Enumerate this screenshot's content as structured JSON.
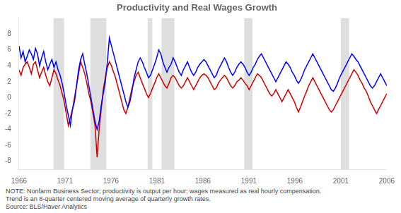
{
  "chart_data": {
    "type": "line",
    "title": "Productivity and Real Wages Growth",
    "note": "NOTE: Nonfarm Business Sector; productivity is output per hour; wages measured as real hourly compensation.\nTrend is an 8-quarter centered moving average of quarterly growth rates.\nSource: BLS/Haver Analytics",
    "xlim": [
      1966,
      2006
    ],
    "xticks": [
      1966,
      1971,
      1976,
      1981,
      1986,
      1991,
      1996,
      2001,
      2006
    ],
    "ylim": [
      -9,
      10
    ],
    "yticks": [
      8,
      6,
      4,
      2,
      0,
      -2,
      -4,
      -6,
      -8
    ],
    "grid": false,
    "recession_bands": [
      [
        1969.75,
        1970.9
      ],
      [
        1973.75,
        1975.5
      ],
      [
        1980.0,
        1980.5
      ],
      [
        1981.5,
        1982.9
      ],
      [
        1990.5,
        1991.4
      ],
      [
        2001.0,
        2001.9
      ]
    ],
    "x": [
      1966.0,
      1966.223,
      1966.447,
      1966.67,
      1966.894,
      1967.117,
      1967.341,
      1967.564,
      1967.788,
      1968.011,
      1968.235,
      1968.458,
      1968.682,
      1968.905,
      1969.128,
      1969.352,
      1969.575,
      1969.799,
      1970.022,
      1970.246,
      1970.469,
      1970.693,
      1970.916,
      1971.14,
      1971.363,
      1971.587,
      1971.81,
      1972.034,
      1972.257,
      1972.48,
      1972.704,
      1972.927,
      1973.151,
      1973.374,
      1973.598,
      1973.821,
      1974.045,
      1974.268,
      1974.492,
      1974.715,
      1974.939,
      1975.162,
      1975.385,
      1975.609,
      1975.832,
      1976.056,
      1976.279,
      1976.503,
      1976.726,
      1976.95,
      1977.173,
      1977.397,
      1977.62,
      1977.844,
      1978.067,
      1978.291,
      1978.514,
      1978.737,
      1978.961,
      1979.184,
      1979.408,
      1979.631,
      1979.855,
      1980.078,
      1980.302,
      1980.525,
      1980.749,
      1980.972,
      1981.196,
      1981.419,
      1981.642,
      1981.866,
      1982.089,
      1982.313,
      1982.536,
      1982.76,
      1982.983,
      1983.207,
      1983.43,
      1983.654,
      1983.877,
      1984.101,
      1984.324,
      1984.547,
      1984.771,
      1984.994,
      1985.218,
      1985.441,
      1985.665,
      1985.888,
      1986.112,
      1986.335,
      1986.559,
      1986.782,
      1987.006,
      1987.229,
      1987.453,
      1987.676,
      1987.899,
      1988.123,
      1988.346,
      1988.57,
      1988.793,
      1989.017,
      1989.24,
      1989.464,
      1989.687,
      1989.911,
      1990.134,
      1990.358,
      1990.581,
      1990.804,
      1991.028,
      1991.251,
      1991.475,
      1991.698,
      1991.922,
      1992.145,
      1992.369,
      1992.592,
      1992.816,
      1993.039,
      1993.263,
      1993.486,
      1993.709,
      1993.933,
      1994.156,
      1994.38,
      1994.603,
      1994.827,
      1995.05,
      1995.274,
      1995.497,
      1995.721,
      1995.944,
      1996.168,
      1996.391,
      1996.615,
      1996.838,
      1997.061,
      1997.285,
      1997.508,
      1997.732,
      1997.955,
      1998.179,
      1998.402,
      1998.626,
      1998.849,
      1999.073,
      1999.296,
      1999.52,
      1999.743,
      1999.966,
      2000.19,
      2000.413,
      2000.637,
      2000.86,
      2001.084,
      2001.307,
      2001.531,
      2001.754,
      2001.978,
      2002.201,
      2002.425,
      2002.648,
      2002.872,
      2003.095,
      2003.318,
      2003.542,
      2003.765,
      2003.989,
      2004.212,
      2004.436,
      2004.659,
      2004.883,
      2005.106,
      2005.33,
      2005.553,
      2005.777,
      2006.0
    ],
    "series": [
      {
        "color": "#0000ff",
        "values": [
          6.5,
          5.0,
          5.8,
          4.5,
          5.2,
          6.0,
          5.5,
          4.8,
          6.2,
          5.5,
          4.0,
          5.0,
          5.8,
          4.5,
          3.5,
          4.2,
          4.8,
          3.8,
          4.5,
          3.5,
          2.8,
          1.8,
          0.5,
          -1.0,
          -2.2,
          -3.5,
          -1.5,
          -0.5,
          1.5,
          3.5,
          4.8,
          5.5,
          4.2,
          3.0,
          1.5,
          0.0,
          -1.5,
          -3.0,
          -4.0,
          -3.0,
          -1.0,
          0.5,
          2.0,
          4.5,
          7.5,
          6.5,
          5.5,
          4.5,
          3.5,
          2.5,
          1.5,
          0.5,
          -0.5,
          -1.2,
          -0.5,
          0.8,
          2.5,
          3.5,
          4.5,
          5.0,
          4.5,
          3.8,
          3.2,
          2.5,
          2.8,
          3.5,
          4.2,
          5.0,
          6.0,
          5.5,
          4.5,
          3.8,
          3.2,
          3.8,
          4.2,
          5.0,
          4.5,
          3.8,
          3.2,
          2.8,
          3.5,
          4.0,
          4.5,
          3.8,
          3.2,
          2.8,
          3.2,
          3.8,
          4.2,
          4.5,
          4.8,
          4.5,
          4.0,
          3.5,
          3.0,
          2.5,
          2.8,
          3.5,
          4.0,
          4.5,
          5.0,
          4.5,
          3.8,
          3.2,
          2.8,
          3.2,
          3.8,
          4.2,
          4.5,
          4.2,
          3.8,
          3.2,
          2.8,
          3.2,
          3.8,
          4.2,
          4.8,
          5.2,
          5.5,
          5.0,
          4.5,
          4.0,
          3.5,
          3.0,
          2.5,
          2.0,
          2.5,
          3.0,
          3.5,
          4.0,
          4.5,
          4.2,
          3.8,
          3.2,
          2.8,
          2.2,
          1.8,
          2.2,
          2.8,
          3.5,
          4.0,
          4.5,
          5.0,
          5.5,
          5.0,
          4.5,
          4.0,
          3.5,
          3.0,
          2.5,
          2.0,
          1.5,
          1.0,
          0.8,
          1.2,
          1.8,
          2.5,
          3.0,
          3.5,
          4.0,
          4.5,
          5.0,
          5.5,
          5.2,
          4.8,
          4.5,
          4.0,
          3.5,
          3.0,
          2.5,
          2.0,
          1.5,
          1.2,
          1.5,
          2.0,
          2.5,
          3.0,
          2.5,
          2.0,
          1.5
        ]
      },
      {
        "color": "#cc0000",
        "values": [
          3.5,
          2.8,
          3.8,
          4.2,
          4.5,
          3.8,
          3.0,
          4.2,
          4.5,
          3.5,
          2.5,
          3.2,
          3.8,
          2.8,
          2.0,
          1.5,
          2.5,
          3.5,
          3.0,
          2.2,
          1.5,
          0.5,
          -0.5,
          -2.0,
          -3.5,
          -2.5,
          -1.5,
          0.0,
          1.5,
          3.0,
          4.5,
          3.8,
          3.0,
          1.8,
          0.5,
          -0.5,
          -2.0,
          -3.5,
          -7.5,
          -4.0,
          -1.5,
          1.0,
          2.5,
          3.8,
          4.5,
          4.0,
          3.2,
          2.5,
          1.5,
          0.5,
          -0.5,
          -1.5,
          -2.0,
          -1.2,
          0.0,
          1.2,
          2.0,
          2.8,
          3.2,
          2.5,
          1.8,
          1.2,
          0.5,
          0.0,
          0.5,
          1.2,
          1.8,
          2.5,
          3.0,
          2.5,
          2.0,
          1.5,
          1.2,
          1.8,
          2.5,
          2.8,
          2.5,
          2.0,
          1.5,
          1.2,
          1.5,
          2.0,
          2.5,
          2.0,
          1.5,
          1.0,
          1.5,
          2.0,
          2.5,
          2.8,
          3.0,
          2.8,
          2.5,
          2.0,
          1.5,
          1.0,
          1.2,
          1.8,
          2.2,
          2.5,
          2.8,
          2.5,
          2.0,
          1.5,
          1.2,
          1.5,
          2.0,
          2.2,
          2.5,
          2.2,
          1.8,
          1.5,
          1.0,
          1.5,
          2.0,
          2.5,
          3.0,
          2.8,
          2.5,
          2.0,
          1.5,
          1.0,
          0.5,
          0.2,
          0.5,
          1.0,
          0.5,
          0.0,
          -0.5,
          0.0,
          0.5,
          1.0,
          0.5,
          0.0,
          -0.5,
          -1.2,
          -1.8,
          -1.2,
          -0.5,
          0.2,
          0.8,
          1.5,
          2.0,
          2.5,
          2.0,
          1.5,
          1.0,
          0.5,
          0.0,
          -0.5,
          -1.0,
          -1.5,
          -1.8,
          -1.5,
          -1.0,
          -0.5,
          0.0,
          0.5,
          1.0,
          1.5,
          2.0,
          2.5,
          3.0,
          3.5,
          3.2,
          2.8,
          2.2,
          1.8,
          1.2,
          0.8,
          0.2,
          -0.5,
          -1.0,
          -1.5,
          -2.0,
          -1.5,
          -1.0,
          -0.5,
          0.0,
          0.5
        ]
      }
    ]
  }
}
